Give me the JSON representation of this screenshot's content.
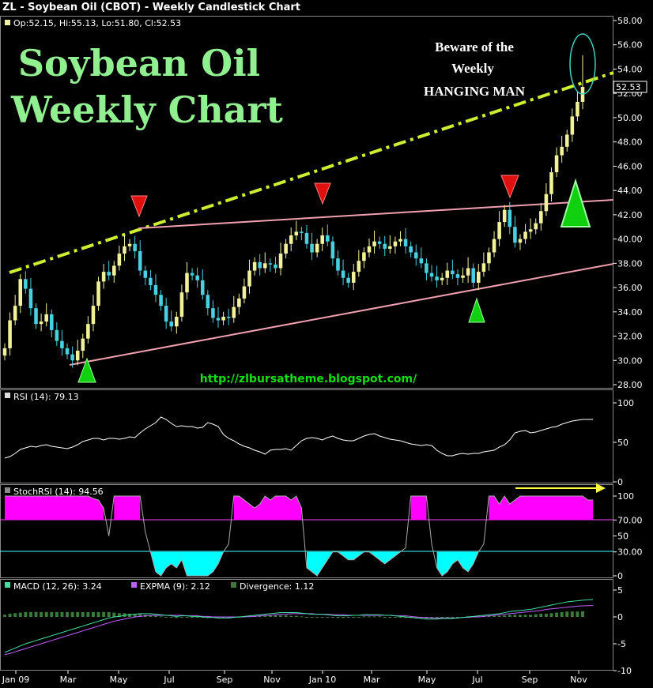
{
  "window_title": "ZL - Soybean Oil (CBOT) - Weekly Candlestick Chart",
  "colors": {
    "up": "#f2f29a",
    "down": "#48d0e0",
    "upper_trend": "#ccee33",
    "channel": "#f0a0b0",
    "rsi_line": "#ffffff",
    "stoch_high": "#ff00ff",
    "stoch_low": "#00ffff",
    "macd": "#40e0a0",
    "expma": "#c060ff",
    "divergence": "#3a7a3a",
    "marker_down": "#e01010",
    "marker_up": "#10d010"
  },
  "main": {
    "info": "Op:52.15, Hi:55.13, Lo:51.80, Cl:52.53",
    "big_title_line1": "Soybean Oil",
    "big_title_line2": "Weekly Chart",
    "note_line1": "Beware of the",
    "note_line2": "Weekly",
    "note_line3": "HANGING MAN",
    "url": "http://zlbursatheme.blogspot.com/",
    "last_price_label": "52.53",
    "y_ticks": [
      "58.00",
      "56.00",
      "54.00",
      "52.00",
      "50.00",
      "48.00",
      "46.00",
      "44.00",
      "42.00",
      "40.00",
      "38.00",
      "36.00",
      "34.00",
      "32.00",
      "30.00",
      "28.00"
    ]
  },
  "rsi": {
    "label": "RSI (14): 79.13",
    "y_ticks": [
      "100",
      "50",
      "0"
    ]
  },
  "stoch": {
    "label": "StochRSI (14): 94.56",
    "y_ticks": [
      "100",
      "70.00",
      "50",
      "30.00",
      "0"
    ]
  },
  "macd": {
    "label_macd": "MACD (12, 26): 3.24",
    "label_expma": "EXPMA (9): 2.12",
    "label_div": "Divergence: 1.12",
    "y_ticks": [
      "5",
      "0",
      "-5",
      "-10"
    ]
  },
  "x_ticks": [
    "Jan 09",
    "Mar",
    "May",
    "Jul",
    "Sep",
    "Nov",
    "Jan 10",
    "Mar",
    "May",
    "Jul",
    "Sep",
    "Nov"
  ],
  "chart_data": {
    "type": "candlestick",
    "title": "ZL - Soybean Oil (CBOT) - Weekly Candlestick Chart",
    "ylim": [
      27,
      58
    ],
    "close": [
      31.0,
      33.3,
      34.5,
      36.7,
      35.9,
      34.3,
      33.0,
      33.2,
      33.8,
      32.5,
      31.6,
      31.0,
      30.5,
      30.0,
      30.8,
      31.8,
      33.0,
      34.5,
      36.5,
      37.3,
      37.0,
      37.8,
      38.8,
      39.4,
      39.6,
      39.0,
      37.4,
      36.8,
      36.2,
      35.4,
      34.5,
      33.2,
      32.8,
      33.6,
      35.6,
      37.2,
      37.0,
      36.6,
      35.4,
      34.3,
      33.5,
      33.3,
      33.6,
      33.5,
      34.4,
      35.1,
      36.1,
      37.4,
      38.1,
      37.6,
      38.0,
      37.9,
      37.6,
      38.8,
      39.6,
      40.3,
      40.6,
      40.5,
      39.6,
      38.9,
      39.6,
      40.3,
      39.8,
      38.4,
      37.4,
      36.8,
      36.4,
      37.3,
      38.2,
      38.9,
      39.4,
      39.8,
      39.6,
      39.2,
      39.4,
      39.8,
      40.0,
      39.4,
      38.9,
      38.4,
      38.0,
      37.2,
      36.9,
      36.6,
      36.8,
      37.4,
      37.1,
      36.8,
      37.0,
      37.6,
      36.4,
      37.3,
      38.0,
      38.9,
      40.0,
      41.4,
      42.4,
      41.0,
      39.7,
      40.0,
      40.6,
      40.8,
      41.3,
      42.3,
      43.7,
      45.5,
      46.9,
      47.6,
      48.6,
      50.1,
      51.3,
      52.53
    ],
    "rsi": [
      30,
      32,
      36,
      41,
      43,
      45,
      44,
      46,
      47,
      45,
      44,
      43,
      42,
      44,
      47,
      51,
      53,
      55,
      55,
      53,
      55,
      55,
      54,
      55,
      57,
      56,
      62,
      67,
      71,
      75,
      82,
      79,
      74,
      70,
      71,
      70,
      70,
      68,
      69,
      75,
      73,
      70,
      60,
      55,
      52,
      48,
      45,
      43,
      40,
      38,
      35,
      40,
      41,
      41,
      42,
      40,
      46,
      52,
      55,
      56,
      55,
      53,
      56,
      58,
      55,
      53,
      52,
      52,
      55,
      58,
      60,
      61,
      58,
      56,
      54,
      53,
      52,
      50,
      48,
      47,
      46,
      47,
      46,
      40,
      36,
      33,
      33,
      35,
      36,
      35,
      36,
      36,
      38,
      39,
      40,
      44,
      47,
      53,
      62,
      64,
      65,
      62,
      63,
      65,
      67,
      69,
      70,
      73,
      75,
      77,
      78,
      79,
      79,
      79
    ],
    "stochrsi": [
      100,
      100,
      100,
      100,
      100,
      100,
      100,
      100,
      100,
      100,
      100,
      100,
      100,
      100,
      100,
      100,
      100,
      97,
      95,
      85,
      50,
      100,
      100,
      100,
      100,
      100,
      100,
      55,
      30,
      5,
      0,
      10,
      15,
      10,
      20,
      0,
      0,
      0,
      0,
      0,
      5,
      15,
      30,
      40,
      100,
      100,
      95,
      90,
      85,
      90,
      100,
      95,
      100,
      100,
      100,
      95,
      100,
      85,
      10,
      5,
      0,
      10,
      20,
      30,
      30,
      25,
      20,
      20,
      25,
      30,
      30,
      25,
      20,
      15,
      20,
      25,
      30,
      35,
      100,
      100,
      100,
      100,
      40,
      10,
      0,
      5,
      15,
      20,
      10,
      5,
      15,
      30,
      40,
      100,
      100,
      90,
      100,
      90,
      95,
      100,
      100,
      100,
      100,
      100,
      100,
      100,
      100,
      100,
      100,
      100,
      100,
      100,
      95,
      95
    ],
    "macd": [
      -6.6,
      -6.2,
      -5.8,
      -5.4,
      -5.0,
      -4.7,
      -4.4,
      -4.1,
      -3.8,
      -3.5,
      -3.2,
      -2.9,
      -2.6,
      -2.3,
      -2.0,
      -1.7,
      -1.4,
      -1.1,
      -0.8,
      -0.5,
      -0.2,
      0.0,
      0.1,
      0.3,
      0.4,
      0.5,
      0.6,
      0.6,
      0.6,
      0.5,
      0.4,
      0.3,
      0.2,
      0.1,
      0.2,
      0.2,
      0.1,
      0.1,
      0.0,
      -0.1,
      -0.1,
      -0.2,
      -0.2,
      -0.2,
      -0.1,
      0.0,
      0.1,
      0.2,
      0.3,
      0.4,
      0.5,
      0.6,
      0.7,
      0.8,
      0.8,
      0.8,
      0.8,
      0.7,
      0.6,
      0.5,
      0.5,
      0.5,
      0.4,
      0.3,
      0.2,
      0.2,
      0.2,
      0.3,
      0.3,
      0.4,
      0.4,
      0.4,
      0.4,
      0.3,
      0.3,
      0.2,
      0.1,
      0.0,
      -0.1,
      -0.2,
      -0.3,
      -0.4,
      -0.4,
      -0.4,
      -0.3,
      -0.3,
      -0.3,
      -0.2,
      -0.1,
      0.0,
      0.1,
      0.2,
      0.3,
      0.4,
      0.5,
      0.6,
      0.8,
      1.0,
      1.1,
      1.2,
      1.3,
      1.4,
      1.6,
      1.8,
      2.0,
      2.2,
      2.4,
      2.6,
      2.8,
      2.9,
      3.0,
      3.1,
      3.2,
      3.24
    ],
    "expma": [
      -7.0,
      -6.8,
      -6.5,
      -6.2,
      -5.9,
      -5.6,
      -5.3,
      -5.0,
      -4.7,
      -4.4,
      -4.1,
      -3.8,
      -3.5,
      -3.2,
      -2.9,
      -2.6,
      -2.3,
      -2.0,
      -1.7,
      -1.4,
      -1.1,
      -0.8,
      -0.6,
      -0.4,
      -0.2,
      0.0,
      0.1,
      0.2,
      0.3,
      0.3,
      0.3,
      0.3,
      0.3,
      0.3,
      0.3,
      0.2,
      0.2,
      0.2,
      0.1,
      0.1,
      0.0,
      0.0,
      0.0,
      0.0,
      0.0,
      0.0,
      0.0,
      0.1,
      0.1,
      0.2,
      0.3,
      0.3,
      0.4,
      0.5,
      0.5,
      0.6,
      0.6,
      0.6,
      0.6,
      0.6,
      0.5,
      0.5,
      0.5,
      0.4,
      0.4,
      0.4,
      0.3,
      0.3,
      0.3,
      0.3,
      0.3,
      0.3,
      0.3,
      0.3,
      0.3,
      0.2,
      0.2,
      0.2,
      0.1,
      0.0,
      -0.1,
      -0.1,
      -0.2,
      -0.2,
      -0.2,
      -0.2,
      -0.2,
      -0.2,
      -0.1,
      -0.1,
      0.0,
      0.0,
      0.1,
      0.2,
      0.3,
      0.4,
      0.5,
      0.6,
      0.7,
      0.8,
      0.9,
      1.0,
      1.1,
      1.2,
      1.4,
      1.5,
      1.6,
      1.7,
      1.8,
      1.9,
      2.0,
      2.05,
      2.1,
      2.12
    ]
  }
}
